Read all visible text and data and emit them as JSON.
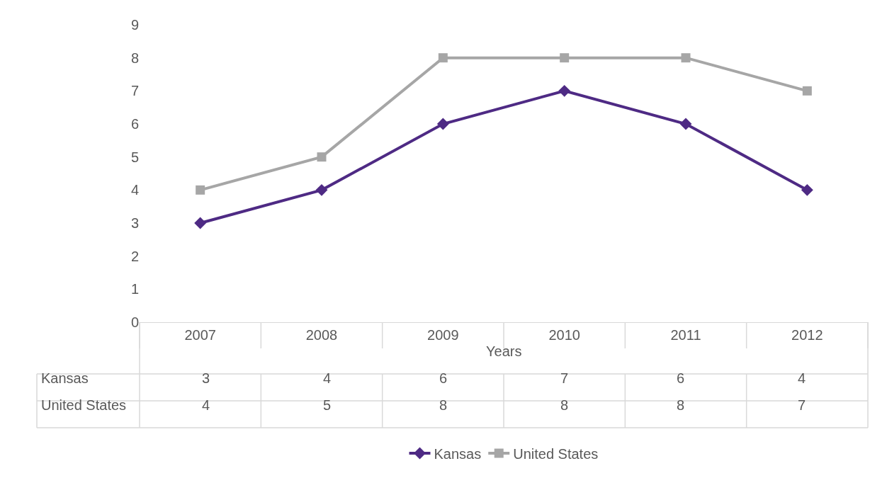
{
  "chart_data": {
    "type": "line",
    "xlabel": "Years",
    "categories": [
      "2007",
      "2008",
      "2009",
      "2010",
      "2011",
      "2012"
    ],
    "series": [
      {
        "name": "Kansas",
        "color": "#4e2a84",
        "values": [
          3,
          4,
          6,
          7,
          6,
          4
        ],
        "marker": "diamond"
      },
      {
        "name": "United States",
        "color": "#a6a6a6",
        "values": [
          4,
          5,
          8,
          8,
          8,
          7
        ],
        "marker": "square"
      }
    ],
    "ylim": [
      0,
      9
    ],
    "yticks": [
      0,
      1,
      2,
      3,
      4,
      5,
      6,
      7,
      8,
      9
    ],
    "grid": false,
    "legend": "bottom",
    "data_labels": true,
    "line_style": "solid"
  }
}
